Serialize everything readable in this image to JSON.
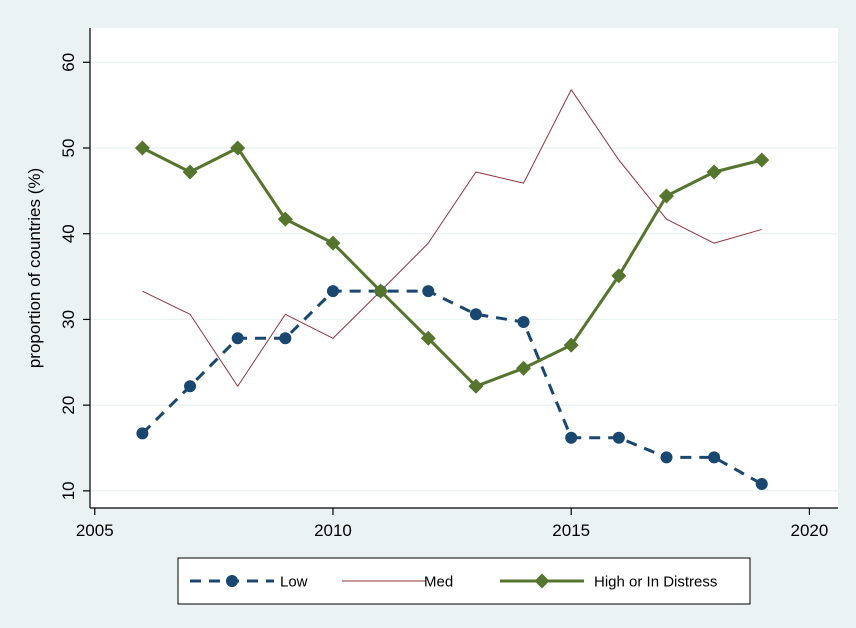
{
  "chart_data": {
    "type": "line",
    "title": "",
    "xlabel": "",
    "ylabel": "proportion of countries (%)",
    "xlim": [
      2005,
      2020
    ],
    "ylim": [
      10,
      60
    ],
    "xticks": [
      2005,
      2010,
      2015,
      2020
    ],
    "yticks": [
      10,
      20,
      30,
      40,
      50,
      60
    ],
    "grid": "horizontal",
    "legend_position": "bottom",
    "x": [
      2006,
      2007,
      2008,
      2009,
      2010,
      2011,
      2012,
      2013,
      2014,
      2015,
      2016,
      2017,
      2018,
      2019
    ],
    "series": [
      {
        "name": "Low",
        "color": "#1a476f",
        "style": "dashed-circle",
        "values": [
          16.7,
          22.2,
          27.8,
          27.8,
          33.3,
          33.3,
          33.3,
          30.6,
          29.7,
          16.2,
          16.2,
          13.9,
          13.9,
          10.8
        ]
      },
      {
        "name": "Med",
        "color": "#90353b",
        "style": "thin-solid",
        "values": [
          33.3,
          30.6,
          22.2,
          30.6,
          27.8,
          33.3,
          38.9,
          47.2,
          45.9,
          56.8,
          48.6,
          41.7,
          38.9,
          40.5
        ]
      },
      {
        "name": "High or In Distress",
        "color": "#55752f",
        "style": "solid-diamond",
        "values": [
          50.0,
          47.2,
          50.0,
          41.7,
          38.9,
          33.3,
          27.8,
          22.2,
          24.3,
          27.0,
          35.1,
          44.4,
          47.2,
          48.6
        ]
      }
    ]
  }
}
